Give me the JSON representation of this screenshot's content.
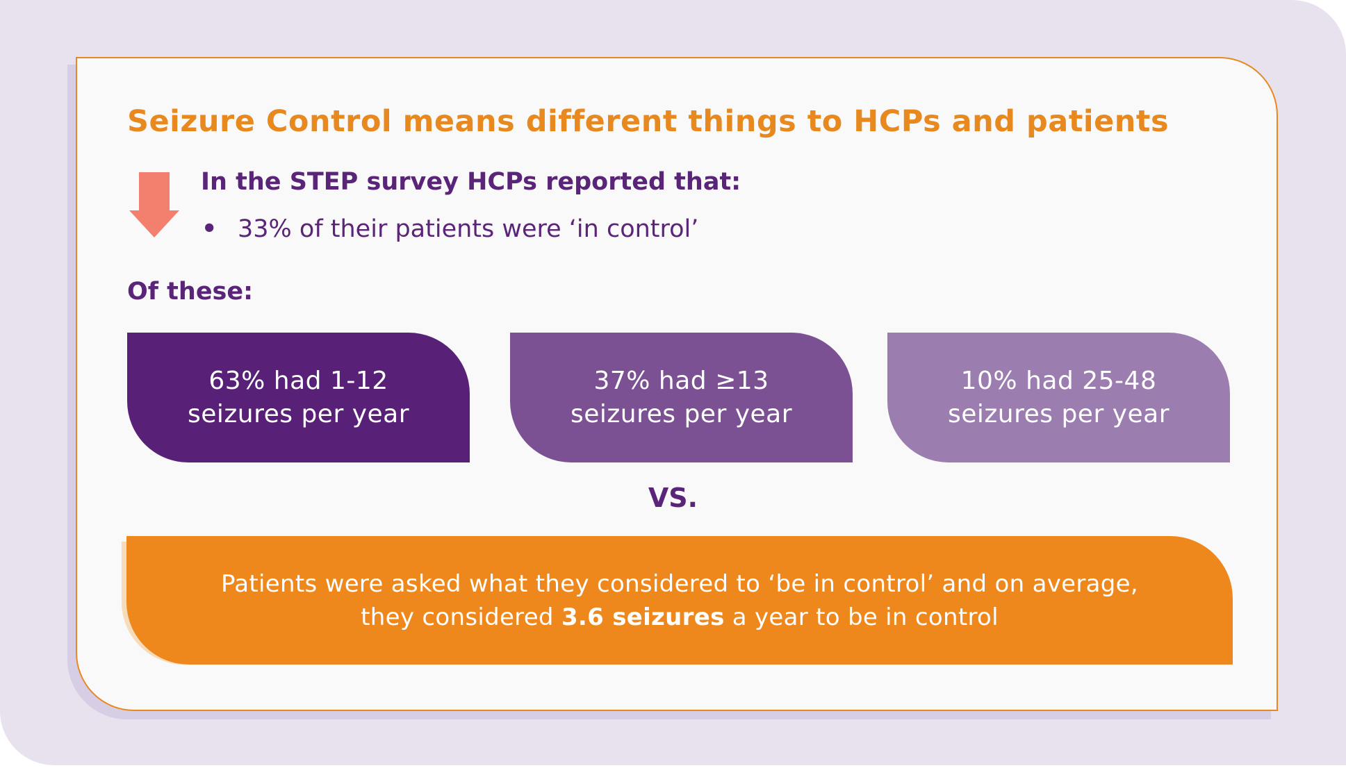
{
  "title": "Seizure Control means different things to HCPs and patients",
  "survey": {
    "heading": "In the STEP survey HCPs reported that:",
    "bullet": "33% of their patients were ‘in control’"
  },
  "of_these": "Of these:",
  "stats": [
    {
      "line1": "63% had 1-12",
      "line2": "seizures per year",
      "color": "#582177"
    },
    {
      "line1": "37% had ≥13",
      "line2": "seizures per year",
      "color": "#7b5194"
    },
    {
      "line1": "10% had 25-48",
      "line2": "seizures per year",
      "color": "#9b7daf"
    }
  ],
  "vs": "VS.",
  "patients": {
    "line1": "Patients were asked what they considered to ‘be in control’ and on average,",
    "line2_before": "they considered ",
    "line2_bold": "3.6 seizures",
    "line2_after": " a year to be in control"
  },
  "colors": {
    "title": "#e8891f",
    "purple_text": "#5a2479",
    "arrow": "#f37f6e",
    "patient_box": "#ee881d"
  }
}
